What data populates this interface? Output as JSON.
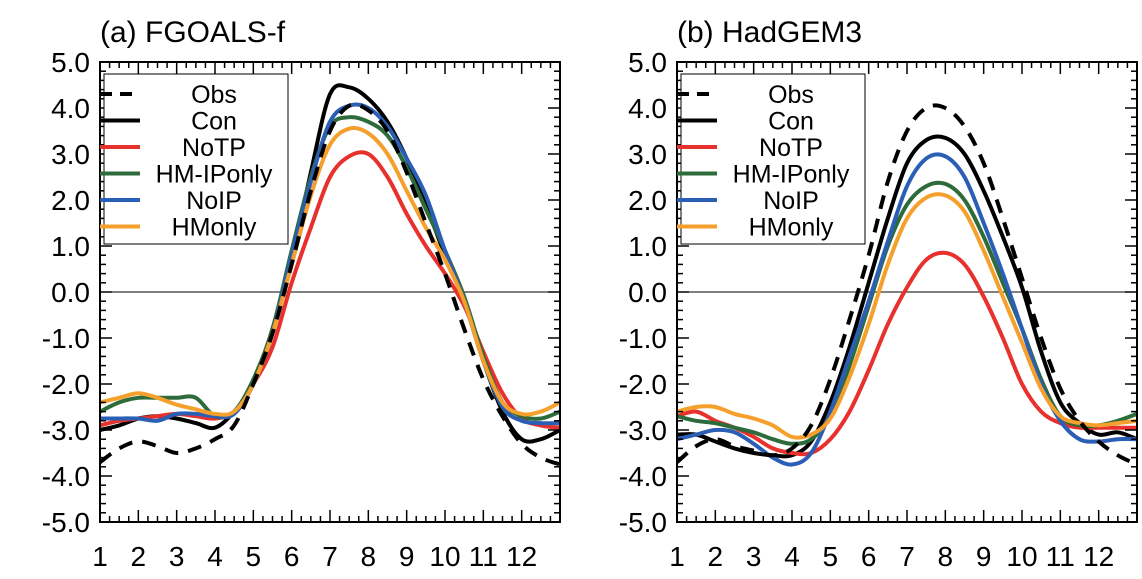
{
  "chart_data": [
    {
      "type": "line",
      "title": "(a) FGOALS-f",
      "xlabel": "",
      "ylabel": "",
      "xlim": [
        1,
        13
      ],
      "ylim": [
        -5.0,
        5.0
      ],
      "x_ticks": [
        1,
        2,
        3,
        4,
        5,
        6,
        7,
        8,
        9,
        10,
        11,
        12
      ],
      "x_tick_labels": [
        "1",
        "2",
        "3",
        "4",
        "5",
        "6",
        "7",
        "8",
        "9",
        "10",
        "11",
        "12"
      ],
      "y_ticks": [
        5.0,
        4.0,
        3.0,
        2.0,
        1.0,
        0.0,
        -1.0,
        -2.0,
        -3.0,
        -4.0,
        -5.0
      ],
      "y_tick_labels": [
        "5.0",
        "4.0",
        "3.0",
        "2.0",
        "1.0",
        "0.0",
        "-1.0",
        "-2.0",
        "-3.0",
        "-4.0",
        "-5.0"
      ],
      "grid": false,
      "zero_line": true,
      "legend_position": "top-left",
      "series": [
        {
          "name": "Obs",
          "color": "#000000",
          "dash": true,
          "x": [
            1,
            1.5,
            2,
            2.5,
            3,
            3.5,
            4,
            4.5,
            5,
            5.5,
            6,
            6.5,
            7,
            7.5,
            8,
            8.5,
            9,
            9.5,
            10,
            10.5,
            11,
            11.5,
            12,
            12.5,
            13
          ],
          "y": [
            -3.7,
            -3.4,
            -3.25,
            -3.35,
            -3.5,
            -3.4,
            -3.2,
            -2.9,
            -2.0,
            -0.9,
            0.6,
            2.2,
            3.5,
            4.05,
            3.95,
            3.5,
            2.6,
            1.5,
            0.4,
            -0.8,
            -1.9,
            -2.7,
            -3.3,
            -3.6,
            -3.75
          ]
        },
        {
          "name": "Con",
          "color": "#000000",
          "dash": false,
          "x": [
            1,
            1.5,
            2,
            2.5,
            3,
            3.5,
            4,
            4.5,
            5,
            5.5,
            6,
            6.5,
            7,
            7.5,
            8,
            8.5,
            9,
            9.5,
            10,
            10.5,
            11,
            11.5,
            12,
            12.5,
            13
          ],
          "y": [
            -3.0,
            -2.9,
            -2.75,
            -2.7,
            -2.75,
            -2.85,
            -2.95,
            -2.6,
            -2.0,
            -0.8,
            0.7,
            2.6,
            4.3,
            4.45,
            4.2,
            3.7,
            2.9,
            1.9,
            0.8,
            -0.2,
            -1.5,
            -2.6,
            -3.2,
            -3.2,
            -3.0
          ]
        },
        {
          "name": "NoTP",
          "color": "#e8302c",
          "dash": false,
          "x": [
            1,
            1.5,
            2,
            2.5,
            3,
            3.5,
            4,
            4.5,
            5,
            5.5,
            6,
            6.5,
            7,
            7.5,
            8,
            8.5,
            9,
            9.5,
            10,
            10.5,
            11,
            11.5,
            12,
            12.5,
            13
          ],
          "y": [
            -2.9,
            -2.8,
            -2.75,
            -2.7,
            -2.65,
            -2.7,
            -2.75,
            -2.6,
            -2.0,
            -1.2,
            0.2,
            1.4,
            2.5,
            2.95,
            3.0,
            2.5,
            1.7,
            1.0,
            0.4,
            -0.3,
            -1.3,
            -2.2,
            -2.75,
            -2.9,
            -2.95
          ]
        },
        {
          "name": "HM-IPonly",
          "color": "#2e6b3a",
          "dash": false,
          "x": [
            1,
            1.5,
            2,
            2.5,
            3,
            3.5,
            4,
            4.5,
            5,
            5.5,
            6,
            6.5,
            7,
            7.5,
            8,
            8.5,
            9,
            9.5,
            10,
            10.5,
            11,
            11.5,
            12,
            12.5,
            13
          ],
          "y": [
            -2.6,
            -2.4,
            -2.3,
            -2.3,
            -2.3,
            -2.3,
            -2.7,
            -2.6,
            -1.9,
            -0.8,
            0.9,
            2.5,
            3.6,
            3.8,
            3.7,
            3.4,
            2.7,
            1.8,
            0.9,
            -0.1,
            -1.4,
            -2.4,
            -2.7,
            -2.75,
            -2.6
          ]
        },
        {
          "name": "NoIP",
          "color": "#2b5fb5",
          "dash": false,
          "x": [
            1,
            1.5,
            2,
            2.5,
            3,
            3.5,
            4,
            4.5,
            5,
            5.5,
            6,
            6.5,
            7,
            7.5,
            8,
            8.5,
            9,
            9.5,
            10,
            10.5,
            11,
            11.5,
            12,
            12.5,
            13
          ],
          "y": [
            -2.75,
            -2.75,
            -2.75,
            -2.8,
            -2.65,
            -2.65,
            -2.7,
            -2.65,
            -2.0,
            -0.9,
            0.8,
            2.4,
            3.7,
            4.05,
            4.0,
            3.6,
            2.9,
            2.1,
            0.9,
            -0.2,
            -1.5,
            -2.5,
            -2.8,
            -2.85,
            -2.85
          ]
        },
        {
          "name": "HMonly",
          "color": "#f5a02c",
          "dash": false,
          "x": [
            1,
            1.5,
            2,
            2.5,
            3,
            3.5,
            4,
            4.5,
            5,
            5.5,
            6,
            6.5,
            7,
            7.5,
            8,
            8.5,
            9,
            9.5,
            10,
            10.5,
            11,
            11.5,
            12,
            12.5,
            13
          ],
          "y": [
            -2.4,
            -2.3,
            -2.2,
            -2.3,
            -2.45,
            -2.55,
            -2.65,
            -2.6,
            -2.0,
            -0.9,
            0.6,
            2.1,
            3.2,
            3.55,
            3.45,
            3.0,
            2.2,
            1.4,
            0.7,
            -0.2,
            -1.5,
            -2.4,
            -2.65,
            -2.6,
            -2.4
          ]
        }
      ]
    },
    {
      "type": "line",
      "title": "(b) HadGEM3",
      "xlabel": "",
      "ylabel": "",
      "xlim": [
        1,
        13
      ],
      "ylim": [
        -5.0,
        5.0
      ],
      "x_ticks": [
        1,
        2,
        3,
        4,
        5,
        6,
        7,
        8,
        9,
        10,
        11,
        12
      ],
      "x_tick_labels": [
        "1",
        "2",
        "3",
        "4",
        "5",
        "6",
        "7",
        "8",
        "9",
        "10",
        "11",
        "12"
      ],
      "y_ticks": [
        5.0,
        4.0,
        3.0,
        2.0,
        1.0,
        0.0,
        -1.0,
        -2.0,
        -3.0,
        -4.0,
        -5.0
      ],
      "y_tick_labels": [
        "5.0",
        "4.0",
        "3.0",
        "2.0",
        "1.0",
        "0.0",
        "-1.0",
        "-2.0",
        "-3.0",
        "-4.0",
        "-5.0"
      ],
      "grid": false,
      "zero_line": true,
      "legend_position": "top-left",
      "series": [
        {
          "name": "Obs",
          "color": "#000000",
          "dash": true,
          "x": [
            1,
            1.5,
            2,
            2.5,
            3,
            3.5,
            4,
            4.5,
            5,
            5.5,
            6,
            6.5,
            7,
            7.5,
            8,
            8.5,
            9,
            9.5,
            10,
            10.5,
            11,
            11.5,
            12,
            12.5,
            13
          ],
          "y": [
            -3.7,
            -3.35,
            -3.2,
            -3.35,
            -3.45,
            -3.55,
            -3.4,
            -2.9,
            -1.9,
            -0.6,
            0.8,
            2.4,
            3.5,
            4.0,
            4.0,
            3.6,
            2.8,
            1.6,
            0.3,
            -1.0,
            -2.1,
            -2.8,
            -3.25,
            -3.55,
            -3.75
          ]
        },
        {
          "name": "Con",
          "color": "#000000",
          "dash": false,
          "x": [
            1,
            1.5,
            2,
            2.5,
            3,
            3.5,
            4,
            4.5,
            5,
            5.5,
            6,
            6.5,
            7,
            7.5,
            8,
            8.5,
            9,
            9.5,
            10,
            10.5,
            11,
            11.5,
            12,
            12.5,
            13
          ],
          "y": [
            -3.1,
            -3.1,
            -3.25,
            -3.4,
            -3.5,
            -3.55,
            -3.55,
            -3.25,
            -2.4,
            -1.2,
            0.2,
            1.6,
            2.8,
            3.3,
            3.35,
            3.0,
            2.2,
            1.2,
            0.1,
            -1.3,
            -2.4,
            -2.85,
            -3.1,
            -3.05,
            -3.2
          ]
        },
        {
          "name": "NoTP",
          "color": "#e8302c",
          "dash": false,
          "x": [
            1,
            1.5,
            2,
            2.5,
            3,
            3.5,
            4,
            4.5,
            5,
            5.5,
            6,
            6.5,
            7,
            7.5,
            8,
            8.5,
            9,
            9.5,
            10,
            10.5,
            11,
            11.5,
            12,
            12.5,
            13
          ],
          "y": [
            -2.7,
            -2.6,
            -2.8,
            -2.95,
            -3.15,
            -3.4,
            -3.5,
            -3.5,
            -3.2,
            -2.6,
            -1.7,
            -0.7,
            0.1,
            0.7,
            0.85,
            0.6,
            -0.1,
            -1.0,
            -2.0,
            -2.6,
            -2.85,
            -2.95,
            -2.95,
            -2.95,
            -2.95
          ]
        },
        {
          "name": "HM-IPonly",
          "color": "#2e6b3a",
          "dash": false,
          "x": [
            1,
            1.5,
            2,
            2.5,
            3,
            3.5,
            4,
            4.5,
            5,
            5.5,
            6,
            6.5,
            7,
            7.5,
            8,
            8.5,
            9,
            9.5,
            10,
            10.5,
            11,
            11.5,
            12,
            12.5,
            13
          ],
          "y": [
            -2.7,
            -2.8,
            -2.85,
            -2.95,
            -3.05,
            -3.2,
            -3.3,
            -3.2,
            -2.7,
            -1.6,
            -0.3,
            1.0,
            1.9,
            2.3,
            2.35,
            2.0,
            1.2,
            0.2,
            -0.8,
            -1.9,
            -2.7,
            -2.9,
            -2.9,
            -2.8,
            -2.65
          ]
        },
        {
          "name": "NoIP",
          "color": "#2b5fb5",
          "dash": false,
          "x": [
            1,
            1.5,
            2,
            2.5,
            3,
            3.5,
            4,
            4.5,
            5,
            5.5,
            6,
            6.5,
            7,
            7.5,
            8,
            8.5,
            9,
            9.5,
            10,
            10.5,
            11,
            11.5,
            12,
            12.5,
            13
          ],
          "y": [
            -3.2,
            -3.1,
            -3.0,
            -3.05,
            -3.3,
            -3.6,
            -3.75,
            -3.5,
            -2.6,
            -1.4,
            -0.2,
            1.1,
            2.3,
            2.9,
            2.95,
            2.5,
            1.5,
            0.4,
            -0.8,
            -2.0,
            -2.8,
            -3.2,
            -3.25,
            -3.2,
            -3.2
          ]
        },
        {
          "name": "HMonly",
          "color": "#f5a02c",
          "dash": false,
          "x": [
            1,
            1.5,
            2,
            2.5,
            3,
            3.5,
            4,
            4.5,
            5,
            5.5,
            6,
            6.5,
            7,
            7.5,
            8,
            8.5,
            9,
            9.5,
            10,
            10.5,
            11,
            11.5,
            12,
            12.5,
            13
          ],
          "y": [
            -2.6,
            -2.5,
            -2.5,
            -2.65,
            -2.75,
            -2.9,
            -3.15,
            -3.1,
            -2.75,
            -1.85,
            -0.7,
            0.6,
            1.6,
            2.05,
            2.1,
            1.75,
            0.9,
            -0.1,
            -1.1,
            -2.1,
            -2.7,
            -2.85,
            -2.9,
            -2.85,
            -2.8
          ]
        }
      ]
    }
  ]
}
